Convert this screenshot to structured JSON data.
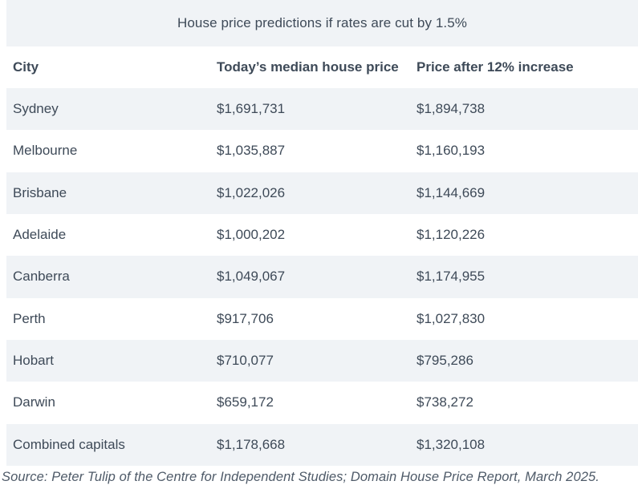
{
  "chart_data": {
    "type": "table",
    "title": "House price predictions if rates are cut by 1.5%",
    "columns": [
      "City",
      "Today’s median house price",
      "Price after 12% increase"
    ],
    "rows_display": [
      [
        "Sydney",
        "$1,691,731",
        "$1,894,738"
      ],
      [
        "Melbourne",
        "$1,035,887",
        "$1,160,193"
      ],
      [
        "Brisbane",
        "$1,022,026",
        "$1,144,669"
      ],
      [
        "Adelaide",
        "$1,000,202",
        "$1,120,226"
      ],
      [
        "Canberra",
        "$1,049,067",
        "$1,174,955"
      ],
      [
        "Perth",
        "$917,706",
        "$1,027,830"
      ],
      [
        "Hobart",
        "$710,077",
        "$795,286"
      ],
      [
        "Darwin",
        "$659,172",
        "$738,272"
      ],
      [
        "Combined capitals",
        "$1,178,668",
        "$1,320,108"
      ]
    ],
    "rows_numeric": [
      {
        "city": "Sydney",
        "today_median": 1691731,
        "after_12pct_increase": 1894738
      },
      {
        "city": "Melbourne",
        "today_median": 1035887,
        "after_12pct_increase": 1160193
      },
      {
        "city": "Brisbane",
        "today_median": 1022026,
        "after_12pct_increase": 1144669
      },
      {
        "city": "Adelaide",
        "today_median": 1000202,
        "after_12pct_increase": 1120226
      },
      {
        "city": "Canberra",
        "today_median": 1049067,
        "after_12pct_increase": 1174955
      },
      {
        "city": "Perth",
        "today_median": 917706,
        "after_12pct_increase": 1027830
      },
      {
        "city": "Hobart",
        "today_median": 710077,
        "after_12pct_increase": 795286
      },
      {
        "city": "Darwin",
        "today_median": 659172,
        "after_12pct_increase": 738272
      },
      {
        "city": "Combined capitals",
        "today_median": 1178668,
        "after_12pct_increase": 1320108
      }
    ],
    "source": "Source: Peter Tulip of the Centre for Independent Studies; Domain House Price Report, March 2025.",
    "layout": {
      "zebra_striping": true,
      "stripe_rows": "odd"
    }
  },
  "colors": {
    "stripe": "#f0f3f6",
    "text": "#3e4a58",
    "source_text": "#4e5a68"
  }
}
